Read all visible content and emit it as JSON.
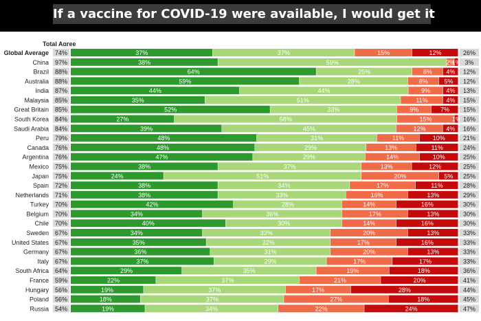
{
  "title": "If a vaccine for COVID-19 were available, I would get it",
  "colors": {
    "strongly_agree": "#2e9a2e",
    "somewhat_agree": "#a8d77a",
    "somewhat_disagree": "#f06b48",
    "strongly_disagree": "#c40a0a",
    "total_agree_bg": "#d9d9d9",
    "total_disagree_bg": "#d9d9d9"
  },
  "chart_data": {
    "type": "bar",
    "orientation": "horizontal",
    "stacked": true,
    "header": "Total Agree",
    "xlim": [
      0,
      100
    ],
    "categories": [
      "Global Average",
      "China",
      "Brazil",
      "Australia",
      "India",
      "Malaysia",
      "Great Britain",
      "South Korea",
      "Saudi Arabia",
      "Peru",
      "Canada",
      "Argentina",
      "Mexico",
      "Japan",
      "Spain",
      "Netherlands",
      "Turkey",
      "Belgium",
      "Chile",
      "Sweden",
      "United States",
      "Germany",
      "Italy",
      "South Africa",
      "France",
      "Hungary",
      "Poland",
      "Russia"
    ],
    "total_agree": [
      "74%",
      "97%",
      "88%",
      "88%",
      "87%",
      "85%",
      "85%",
      "84%",
      "84%",
      "79%",
      "76%",
      "76%",
      "75%",
      "75%",
      "72%",
      "71%",
      "70%",
      "70%",
      "70%",
      "67%",
      "67%",
      "67%",
      "67%",
      "64%",
      "59%",
      "56%",
      "56%",
      "54%"
    ],
    "total_disagree": [
      "26%",
      "3%",
      "12%",
      "12%",
      "13%",
      "15%",
      "15%",
      "16%",
      "16%",
      "21%",
      "24%",
      "25%",
      "25%",
      "25%",
      "28%",
      "29%",
      "30%",
      "30%",
      "30%",
      "33%",
      "33%",
      "33%",
      "33%",
      "36%",
      "41%",
      "44%",
      "45%",
      "47%"
    ],
    "series": [
      {
        "key": "strongly_agree",
        "values": [
          37,
          38,
          64,
          59,
          44,
          35,
          52,
          27,
          39,
          48,
          48,
          47,
          38,
          24,
          38,
          38,
          42,
          34,
          40,
          34,
          35,
          36,
          37,
          29,
          22,
          19,
          18,
          19
        ]
      },
      {
        "key": "somewhat_agree",
        "values": [
          37,
          59,
          25,
          28,
          44,
          51,
          33,
          58,
          45,
          31,
          29,
          29,
          37,
          51,
          34,
          33,
          28,
          36,
          30,
          33,
          32,
          31,
          29,
          35,
          37,
          37,
          37,
          34
        ]
      },
      {
        "key": "somewhat_disagree",
        "values": [
          15,
          2,
          8,
          8,
          9,
          11,
          9,
          15,
          12,
          11,
          13,
          14,
          13,
          20,
          17,
          16,
          14,
          17,
          14,
          20,
          17,
          20,
          17,
          19,
          21,
          17,
          27,
          22
        ]
      },
      {
        "key": "strongly_disagree",
        "values": [
          12,
          1,
          4,
          5,
          4,
          4,
          7,
          1,
          4,
          10,
          11,
          10,
          12,
          5,
          11,
          13,
          16,
          13,
          16,
          13,
          16,
          13,
          17,
          18,
          20,
          28,
          18,
          24
        ]
      }
    ]
  }
}
